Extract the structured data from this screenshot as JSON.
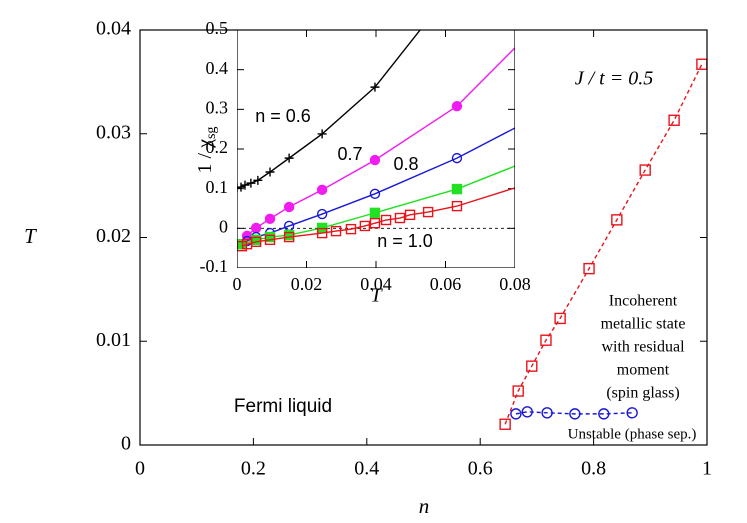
{
  "chart_data": [
    {
      "type": "line",
      "x_label": "n",
      "y_label": "T",
      "xlim": [
        0,
        1
      ],
      "ylim": [
        0,
        0.04
      ],
      "xticks": [
        0,
        0.2,
        0.4,
        0.6,
        0.8,
        1
      ],
      "yticks": [
        0,
        0.01,
        0.02,
        0.03,
        0.04
      ],
      "annotations": {
        "coupling": "J / t = 0.5",
        "spin_glass": [
          "Incoherent",
          "metallic state",
          "with residual",
          "moment",
          "(spin glass)"
        ],
        "fermi": "Fermi liquid",
        "unstable": "Unstable (phase sep.)"
      },
      "series": [
        {
          "color": "#e8141b",
          "marker": "square",
          "filled": false,
          "dashed": true,
          "x": [
            0.644,
            0.667,
            0.691,
            0.716,
            0.741,
            0.792,
            0.841,
            0.891,
            0.942,
            0.991
          ],
          "values": [
            0.002,
            0.0052,
            0.0076,
            0.0101,
            0.0122,
            0.017,
            0.0217,
            0.0265,
            0.0313,
            0.0367
          ]
        },
        {
          "color": "#1a1ad6",
          "marker": "circle",
          "filled": false,
          "dashed": true,
          "x": [
            0.663,
            0.683,
            0.718,
            0.767,
            0.818,
            0.868
          ],
          "values": [
            0.003,
            0.0032,
            0.0031,
            0.003,
            0.003,
            0.0031
          ]
        }
      ]
    },
    {
      "type": "line",
      "x_label": "T",
      "y_label": "1 / χ",
      "y_label_sub": "sg",
      "xlim": [
        0,
        0.08
      ],
      "ylim": [
        -0.1,
        0.5
      ],
      "xticks": [
        0,
        0.02,
        0.04,
        0.06,
        0.08
      ],
      "yticks": [
        -0.1,
        0,
        0.1,
        0.2,
        0.3,
        0.4,
        0.5
      ],
      "zero_line": true,
      "labels": {
        "n06": "n = 0.6",
        "n07": "0.7",
        "n08": "0.8",
        "n10": "n = 1.0"
      },
      "series": [
        {
          "color": "#000000",
          "marker": "plus",
          "filled": false,
          "x": [
            0,
            0.00115,
            0.0023,
            0.004,
            0.006,
            0.0095,
            0.015,
            0.0245,
            0.0397
          ],
          "values": [
            0.102,
            0.104,
            0.109,
            0.114,
            0.121,
            0.142,
            0.177,
            0.238,
            0.356
          ],
          "curve_end": [
            0.0527,
            0.5
          ]
        },
        {
          "color": "#f01cf0",
          "marker": "circle",
          "filled": true,
          "x": [
            0.0014,
            0.0029,
            0.0055,
            0.0095,
            0.015,
            0.0245,
            0.0397,
            0.0633
          ],
          "values": [
            -0.04,
            -0.019,
            0.001,
            0.024,
            0.054,
            0.097,
            0.172,
            0.308
          ],
          "curve_end": [
            0.08,
            0.455
          ]
        },
        {
          "color": "#1a1ad6",
          "marker": "circle",
          "filled": false,
          "x": [
            0.0014,
            0.0029,
            0.0055,
            0.0095,
            0.015,
            0.0245,
            0.0397,
            0.0633
          ],
          "values": [
            -0.04,
            -0.032,
            -0.022,
            -0.012,
            0.006,
            0.036,
            0.087,
            0.177
          ],
          "curve_end": [
            0.08,
            0.253
          ]
        },
        {
          "color": "#22e022",
          "marker": "square",
          "filled": true,
          "x": [
            0.0014,
            0.0055,
            0.0095,
            0.015,
            0.0245,
            0.0397,
            0.0633
          ],
          "values": [
            -0.04,
            -0.029,
            -0.022,
            -0.017,
            0.001,
            0.039,
            0.099
          ],
          "curve_end": [
            0.08,
            0.157
          ]
        },
        {
          "color": "#e8141b",
          "marker": "square",
          "filled": false,
          "x": [
            0.0014,
            0.0029,
            0.0055,
            0.0095,
            0.015,
            0.0245,
            0.0285,
            0.0328,
            0.0368,
            0.0397,
            0.0429,
            0.0469,
            0.0498,
            0.055,
            0.0633
          ],
          "values": [
            -0.045,
            -0.04,
            -0.034,
            -0.029,
            -0.022,
            -0.012,
            -0.007,
            -0.002,
            0.006,
            0.013,
            0.021,
            0.026,
            0.034,
            0.041,
            0.056
          ],
          "curve_end": [
            0.08,
            0.102
          ]
        }
      ]
    }
  ]
}
